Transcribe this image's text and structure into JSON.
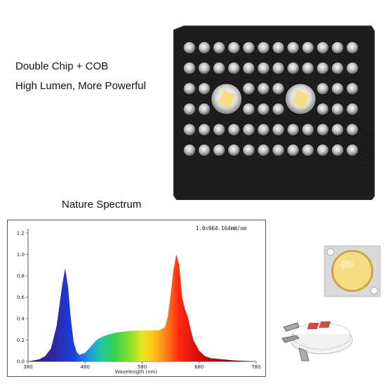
{
  "features": [
    "Double Chip + COB",
    "High Lumen, More Powerful"
  ],
  "spectrum": {
    "title": "Nature Spectrum",
    "note": "1.0=964.164mW/nm"
  },
  "chart_data": {
    "type": "area",
    "title": "",
    "xlabel": "Wavelength (nm)",
    "ylabel": "",
    "xlim": [
      380,
      780
    ],
    "ylim": [
      0,
      1.2
    ],
    "xticks": [
      "380",
      "480",
      "580",
      "680",
      "780"
    ],
    "yticks": [
      "0.0",
      "0.2",
      "0.4",
      "0.6",
      "0.8",
      "1.0",
      "1.2"
    ],
    "grid": false,
    "x": [
      380,
      390,
      400,
      410,
      420,
      430,
      440,
      445,
      450,
      455,
      460,
      465,
      470,
      480,
      490,
      500,
      510,
      520,
      530,
      540,
      550,
      560,
      570,
      580,
      590,
      600,
      610,
      620,
      625,
      630,
      635,
      640,
      645,
      650,
      655,
      660,
      665,
      670,
      680,
      690,
      700,
      720,
      740,
      760,
      780
    ],
    "y": [
      0.0,
      0.01,
      0.02,
      0.05,
      0.12,
      0.33,
      0.72,
      0.87,
      0.7,
      0.4,
      0.18,
      0.09,
      0.06,
      0.08,
      0.14,
      0.2,
      0.23,
      0.25,
      0.265,
      0.275,
      0.28,
      0.285,
      0.288,
      0.29,
      0.29,
      0.29,
      0.292,
      0.32,
      0.42,
      0.62,
      0.86,
      1.0,
      0.9,
      0.6,
      0.49,
      0.42,
      0.3,
      0.2,
      0.1,
      0.05,
      0.03,
      0.02,
      0.01,
      0.005,
      0.0
    ]
  },
  "lamp": {
    "rows": 6,
    "cols": 12,
    "icon": "led-grow-light-panel"
  },
  "cob_chip": {
    "icon": "cob-led-chip",
    "face_color": "#f8dc83"
  },
  "chip_holder": {
    "icon": "cob-chip-holder",
    "accent_color": "#d24a4a"
  }
}
